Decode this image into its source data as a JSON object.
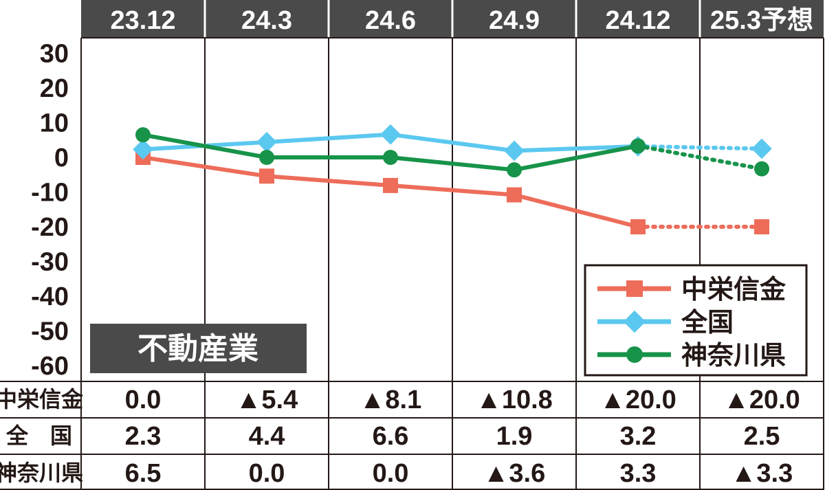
{
  "chart_data": {
    "type": "line",
    "categories": [
      "23.12",
      "24.3",
      "24.6",
      "24.9",
      "24.12",
      "25.3予想"
    ],
    "yticks": [
      "30",
      "20",
      "10",
      "0",
      "-10",
      "-20",
      "-30",
      "-40",
      "-50",
      "-60"
    ],
    "ylim": [
      -60,
      30
    ],
    "badge": "不動産業",
    "series": [
      {
        "name": "中栄信金",
        "values": [
          0.0,
          -5.4,
          -8.1,
          -10.8,
          -20.0,
          -20.0
        ],
        "color": "#ed6d5a",
        "marker": "square",
        "row_label": "中栄信金",
        "table": [
          "0.0",
          "▲5.4",
          "▲8.1",
          "▲10.8",
          "▲20.0",
          "▲20.0"
        ]
      },
      {
        "name": "全国",
        "values": [
          2.3,
          4.4,
          6.6,
          1.9,
          3.2,
          2.5
        ],
        "color": "#5bc8f0",
        "marker": "diamond",
        "row_label": "全　国",
        "table": [
          "2.3",
          "4.4",
          "6.6",
          "1.9",
          "3.2",
          "2.5"
        ]
      },
      {
        "name": "神奈川県",
        "values": [
          6.5,
          0.0,
          0.0,
          -3.6,
          3.3,
          -3.3
        ],
        "color": "#17934a",
        "marker": "circle",
        "row_label": "神奈川県",
        "table": [
          "6.5",
          "0.0",
          "0.0",
          "▲3.6",
          "3.3",
          "▲3.3"
        ]
      }
    ],
    "forecast_from_index": 4,
    "legend_position": "bottom-right",
    "colors": {
      "header_bg": "#4a4a4a",
      "grid": "#231815"
    }
  }
}
